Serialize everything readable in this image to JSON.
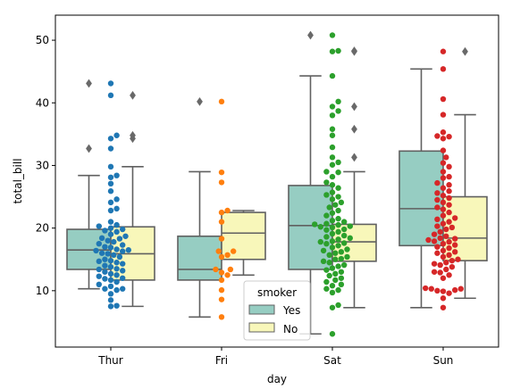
{
  "chart_data": {
    "type": "box+swarm",
    "xlabel": "day",
    "ylabel": "total_bill",
    "categories": [
      "Thur",
      "Fri",
      "Sat",
      "Sun"
    ],
    "ylim": [
      1,
      54
    ],
    "yticks": [
      10,
      20,
      30,
      40,
      50
    ],
    "legend": {
      "title": "smoker",
      "position": "lower-center",
      "entries": [
        "Yes",
        "No"
      ]
    },
    "box_colors": {
      "Yes": "#96cdc2",
      "No": "#f8f7ba"
    },
    "swarm_colors": {
      "Thur": "#1f77b4",
      "Fri": "#ff7f0e",
      "Sat": "#2ca02c",
      "Sun": "#d62728"
    },
    "line_color": "#606060",
    "outlier_color": "#696969",
    "boxes": [
      {
        "day": "Thur",
        "smoker": "Yes",
        "q1": 13.4,
        "median": 16.5,
        "q3": 19.8,
        "whisker_low": 10.3,
        "whisker_high": 28.4,
        "outliers": [
          32.7,
          43.1
        ]
      },
      {
        "day": "Thur",
        "smoker": "No",
        "q1": 11.7,
        "median": 15.9,
        "q3": 20.2,
        "whisker_low": 7.5,
        "whisker_high": 29.8,
        "outliers": [
          34.3,
          34.8,
          41.2
        ]
      },
      {
        "day": "Fri",
        "smoker": "Yes",
        "q1": 11.7,
        "median": 13.4,
        "q3": 18.7,
        "whisker_low": 5.8,
        "whisker_high": 29.0,
        "outliers": [
          40.2
        ]
      },
      {
        "day": "Fri",
        "smoker": "No",
        "q1": 15.0,
        "median": 19.2,
        "q3": 22.5,
        "whisker_low": 12.5,
        "whisker_high": 22.8,
        "outliers": []
      },
      {
        "day": "Sat",
        "smoker": "Yes",
        "q1": 13.4,
        "median": 20.4,
        "q3": 26.8,
        "whisker_low": 3.1,
        "whisker_high": 44.3,
        "outliers": [
          50.8
        ]
      },
      {
        "day": "Sat",
        "smoker": "No",
        "q1": 14.7,
        "median": 17.8,
        "q3": 20.6,
        "whisker_low": 7.3,
        "whisker_high": 29.0,
        "outliers": [
          31.3,
          35.8,
          39.4,
          48.2,
          48.3
        ]
      },
      {
        "day": "Sun",
        "smoker": "Yes",
        "q1": 17.2,
        "median": 23.1,
        "q3": 32.3,
        "whisker_low": 7.3,
        "whisker_high": 45.4,
        "outliers": []
      },
      {
        "day": "Sun",
        "smoker": "No",
        "q1": 14.8,
        "median": 18.4,
        "q3": 25.0,
        "whisker_low": 8.8,
        "whisker_high": 38.1,
        "outliers": [
          48.2
        ]
      }
    ],
    "points": {
      "Thur": [
        7.5,
        7.6,
        8.5,
        9.5,
        10.1,
        10.3,
        10.3,
        10.7,
        11.0,
        11.4,
        11.7,
        11.9,
        12.0,
        12.3,
        12.5,
        12.7,
        13.0,
        13.2,
        13.4,
        13.5,
        13.8,
        14.0,
        14.3,
        14.5,
        14.7,
        14.8,
        15.0,
        15.4,
        15.7,
        15.9,
        16.0,
        16.3,
        16.4,
        16.5,
        16.6,
        16.9,
        17.0,
        17.3,
        17.5,
        17.8,
        18.0,
        18.3,
        18.4,
        18.7,
        19.0,
        19.4,
        19.6,
        19.8,
        20.0,
        20.3,
        20.5,
        21.0,
        22.8,
        23.1,
        24.1,
        24.6,
        25.9,
        27.1,
        28.1,
        28.4,
        29.8,
        32.7,
        34.3,
        34.8,
        41.2,
        43.1
      ],
      "Fri": [
        5.8,
        8.6,
        10.1,
        11.7,
        12.5,
        12.9,
        13.4,
        13.4,
        15.4,
        15.7,
        16.3,
        16.3,
        18.3,
        21.0,
        22.5,
        22.8,
        27.3,
        28.9,
        40.2
      ],
      "Sat": [
        3.1,
        7.3,
        7.7,
        9.7,
        10.1,
        10.3,
        10.8,
        11.0,
        11.4,
        11.7,
        12.0,
        12.4,
        12.7,
        13.0,
        13.3,
        13.6,
        13.9,
        14.1,
        14.5,
        14.7,
        15.0,
        15.1,
        15.4,
        15.7,
        16.0,
        16.2,
        16.4,
        16.6,
        16.9,
        17.2,
        17.5,
        17.6,
        17.8,
        17.9,
        18.2,
        18.4,
        18.6,
        18.8,
        19.1,
        19.4,
        19.7,
        19.8,
        20.1,
        20.2,
        20.3,
        20.5,
        20.6,
        20.7,
        21.0,
        21.2,
        21.5,
        22.0,
        22.4,
        22.8,
        23.3,
        23.7,
        24.1,
        24.6,
        25.0,
        25.3,
        25.7,
        26.4,
        26.9,
        27.3,
        28.2,
        28.9,
        29.0,
        30.1,
        30.5,
        31.3,
        32.9,
        34.8,
        35.8,
        38.0,
        38.7,
        39.4,
        40.2,
        44.3,
        48.2,
        48.3,
        50.8
      ],
      "Sun": [
        7.3,
        8.8,
        9.6,
        9.9,
        10.0,
        10.1,
        10.3,
        10.3,
        10.4,
        12.0,
        12.5,
        12.9,
        13.0,
        13.4,
        13.8,
        14.1,
        14.3,
        14.5,
        14.8,
        15.0,
        15.4,
        15.7,
        16.0,
        16.2,
        16.4,
        16.8,
        17.0,
        17.3,
        17.5,
        17.8,
        17.9,
        18.1,
        18.3,
        18.4,
        18.7,
        19.0,
        19.4,
        19.8,
        20.1,
        20.3,
        20.7,
        21.0,
        21.4,
        21.6,
        22.0,
        22.5,
        23.0,
        23.3,
        23.7,
        24.1,
        24.5,
        24.8,
        25.2,
        25.6,
        25.9,
        26.4,
        26.9,
        27.2,
        28.0,
        28.2,
        29.0,
        29.8,
        30.4,
        31.3,
        32.4,
        34.3,
        34.6,
        34.7,
        35.3,
        38.1,
        40.6,
        45.4,
        48.2
      ]
    }
  }
}
